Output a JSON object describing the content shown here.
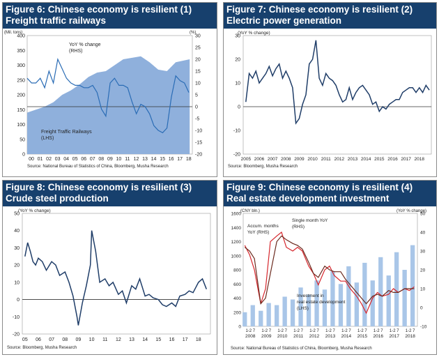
{
  "chart_data": [
    {
      "type": "area",
      "figure": "Figure 6: Chinese economy is resilient (1)",
      "subtitle": "Freight traffic railways",
      "y_left_unit": "(Mil. tons)",
      "y_right_unit": "(%)",
      "ylim_left": [
        0,
        400
      ],
      "ylim_right": [
        -20,
        30
      ],
      "yticks_left": [
        "0",
        "50",
        "100",
        "150",
        "200",
        "250",
        "300",
        "350",
        "400"
      ],
      "yticks_right": [
        "-20",
        "-15",
        "-10",
        "-5",
        "0",
        "5",
        "10",
        "15",
        "20",
        "25",
        "30"
      ],
      "xticks": [
        "00",
        "01",
        "02",
        "03",
        "04",
        "05",
        "06",
        "07",
        "08",
        "09",
        "10",
        "11",
        "12",
        "13",
        "14",
        "15",
        "16",
        "17",
        "18"
      ],
      "annotations": [
        "YoY % change\n(RHS)",
        "Freight Traffic Railways\n(LHS)"
      ],
      "source": "Source: National Bureau of Statistics of China, Bloomberg, Musha Research",
      "series": [
        {
          "name": "Freight Traffic Railways (LHS)",
          "x": [
            2000,
            2001,
            2002,
            2003,
            2004,
            2005,
            2006,
            2007,
            2008,
            2009,
            2010,
            2011,
            2012,
            2013,
            2014,
            2015,
            2016,
            2017,
            2018.6
          ],
          "values": [
            140,
            150,
            160,
            175,
            200,
            215,
            235,
            260,
            275,
            280,
            300,
            320,
            325,
            330,
            310,
            285,
            280,
            310,
            320
          ]
        },
        {
          "name": "YoY % change (RHS)",
          "x": [
            2000,
            2000.5,
            2001,
            2001.5,
            2002,
            2002.5,
            2003,
            2003.5,
            2004,
            2004.5,
            2005,
            2005.5,
            2006,
            2006.5,
            2007,
            2007.5,
            2008,
            2008.5,
            2009,
            2009.5,
            2010,
            2010.5,
            2011,
            2011.5,
            2012,
            2012.5,
            2013,
            2013.5,
            2014,
            2014.5,
            2015,
            2015.5,
            2016,
            2016.5,
            2017,
            2017.5,
            2018,
            2018.5
          ],
          "values": [
            12,
            10,
            10,
            12,
            8,
            15,
            10,
            20,
            16,
            12,
            10,
            9,
            9,
            8,
            8,
            9,
            6,
            -1,
            -4,
            10,
            12,
            9,
            9,
            8,
            2,
            -3,
            1,
            0,
            -3,
            -8,
            -10,
            -11,
            -9,
            4,
            13,
            11,
            10,
            6
          ]
        }
      ]
    },
    {
      "type": "line",
      "figure": "Figure 7: Chinese economy is resilient (2)",
      "subtitle": "Electric power generation",
      "ylabel": "(YoY % change)",
      "ylim": [
        -20,
        30
      ],
      "yticks": [
        "-20",
        "-10",
        "0",
        "10",
        "20",
        "30"
      ],
      "xticks": [
        "2005",
        "2006",
        "2007",
        "2008",
        "2009",
        "2010",
        "2011",
        "2012",
        "2013",
        "2014",
        "2015",
        "2016",
        "2017",
        "2018"
      ],
      "source": "Source: Bloomberg, Musha Research",
      "series": [
        {
          "x": [
            2005,
            2005.25,
            2005.5,
            2005.75,
            2006,
            2006.25,
            2006.5,
            2006.75,
            2007,
            2007.25,
            2007.5,
            2007.75,
            2008,
            2008.25,
            2008.5,
            2008.75,
            2009,
            2009.25,
            2009.5,
            2009.75,
            2010,
            2010.25,
            2010.5,
            2010.75,
            2011,
            2011.25,
            2011.5,
            2011.75,
            2012,
            2012.25,
            2012.5,
            2012.75,
            2013,
            2013.25,
            2013.5,
            2013.75,
            2014,
            2014.25,
            2014.5,
            2014.75,
            2015,
            2015.25,
            2015.5,
            2015.75,
            2016,
            2016.25,
            2016.5,
            2016.75,
            2017,
            2017.25,
            2017.5,
            2017.75,
            2018,
            2018.25,
            2018.5,
            2018.75
          ],
          "values": [
            2,
            14,
            12,
            15,
            10,
            12,
            14,
            17,
            13,
            16,
            18,
            12,
            15,
            12,
            8,
            -7,
            -5,
            1,
            5,
            18,
            20,
            28,
            12,
            9,
            14,
            12,
            11,
            9,
            5,
            2,
            3,
            8,
            3,
            6,
            8,
            9,
            7,
            5,
            1,
            2,
            -2,
            0,
            -1,
            1,
            2,
            3,
            3,
            6,
            7,
            8,
            8,
            6,
            8,
            6,
            9,
            7
          ]
        }
      ]
    },
    {
      "type": "line",
      "figure": "Figure 8: Chinese economy is resilient (3)",
      "subtitle": "Crude steel production",
      "ylabel": "(YoY % change)",
      "ylim": [
        -20,
        50
      ],
      "yticks": [
        "-20",
        "-10",
        "0",
        "10",
        "20",
        "30",
        "40",
        "50"
      ],
      "xticks": [
        "05",
        "06",
        "07",
        "08",
        "09",
        "10",
        "11",
        "12",
        "13",
        "14",
        "15",
        "16",
        "17",
        "18"
      ],
      "source": "Source: Bloomberg, Musha Research",
      "series": [
        {
          "x": [
            2005,
            2005.2,
            2005.4,
            2005.6,
            2005.8,
            2006,
            2006.3,
            2006.6,
            2007,
            2007.3,
            2007.6,
            2008,
            2008.3,
            2008.6,
            2008.9,
            2009,
            2009.3,
            2009.6,
            2009.9,
            2010,
            2010.3,
            2010.6,
            2011,
            2011.3,
            2011.6,
            2012,
            2012.3,
            2012.6,
            2013,
            2013.3,
            2013.6,
            2014,
            2014.3,
            2014.6,
            2015,
            2015.3,
            2015.6,
            2016,
            2016.3,
            2016.6,
            2017,
            2017.3,
            2017.6,
            2018,
            2018.3,
            2018.6
          ],
          "values": [
            25,
            33,
            28,
            22,
            20,
            24,
            22,
            17,
            22,
            20,
            14,
            16,
            10,
            2,
            -10,
            -15,
            -2,
            8,
            20,
            40,
            28,
            10,
            12,
            8,
            10,
            3,
            5,
            -2,
            8,
            6,
            12,
            2,
            3,
            1,
            0,
            -3,
            -4,
            -2,
            -4,
            2,
            3,
            5,
            4,
            10,
            12,
            6
          ]
        }
      ]
    },
    {
      "type": "bar+line",
      "figure": "Figure 9: Chinese economy is resilient (4)",
      "subtitle": "Real estate development investment",
      "y_left_unit": "(CNY bln.)",
      "y_right_unit": "(YoY % change)",
      "ylim_left": [
        0,
        1600
      ],
      "ylim_right": [
        -10,
        50
      ],
      "yticks_left": [
        "0",
        "200",
        "400",
        "600",
        "800",
        "1000",
        "1200",
        "1400",
        "1600"
      ],
      "yticks_right": [
        "-10",
        "0",
        "10",
        "20",
        "30",
        "40",
        "50"
      ],
      "xticks_months": "1-2 7",
      "xticks_years": [
        "2008",
        "2009",
        "2010",
        "2011",
        "2012",
        "2013",
        "2014",
        "2015",
        "2016",
        "2017",
        "2018"
      ],
      "annotations": [
        "Accum. months\nYoY (RHS)",
        "Single month YoY\n(RHS)",
        "Investment in\nreal estate development\n(LHS)"
      ],
      "source": "Source: National Bureau of Statistics of China, Bloomberg, Musha Research",
      "series": [
        {
          "name": "Investment in real estate development (LHS)",
          "kind": "bar",
          "x": [
            2008,
            2008.5,
            2009,
            2009.5,
            2010,
            2010.5,
            2011,
            2011.5,
            2012,
            2012.5,
            2013,
            2013.5,
            2014,
            2014.5,
            2015,
            2015.5,
            2016,
            2016.5,
            2017,
            2017.5,
            2018,
            2018.5
          ],
          "values": [
            200,
            300,
            220,
            330,
            300,
            420,
            380,
            550,
            450,
            650,
            520,
            780,
            600,
            850,
            620,
            900,
            650,
            980,
            720,
            1050,
            800,
            1150
          ]
        },
        {
          "name": "Single month YoY (RHS)",
          "kind": "line",
          "x": [
            2008,
            2008.3,
            2008.6,
            2009,
            2009.3,
            2009.6,
            2010,
            2010.3,
            2010.6,
            2011,
            2011.3,
            2011.6,
            2012,
            2012.3,
            2012.6,
            2013,
            2013.3,
            2013.6,
            2014,
            2014.3,
            2014.6,
            2015,
            2015.3,
            2015.6,
            2016,
            2016.3,
            2016.6,
            2017,
            2017.3,
            2017.6,
            2018,
            2018.3,
            2018.6
          ],
          "values": [
            33,
            28,
            20,
            2,
            10,
            35,
            38,
            40,
            32,
            30,
            32,
            30,
            22,
            18,
            12,
            20,
            22,
            17,
            14,
            14,
            10,
            6,
            2,
            -3,
            5,
            8,
            6,
            7,
            10,
            8,
            10,
            9,
            11
          ]
        },
        {
          "name": "Accum. months YoY (RHS)",
          "kind": "line",
          "x": [
            2008,
            2008.3,
            2008.6,
            2009,
            2009.3,
            2009.6,
            2010,
            2010.3,
            2010.6,
            2011,
            2011.3,
            2011.6,
            2012,
            2012.3,
            2012.6,
            2013,
            2013.3,
            2013.6,
            2014,
            2014.3,
            2014.6,
            2015,
            2015.3,
            2015.6,
            2016,
            2016.3,
            2016.6,
            2017,
            2017.3,
            2017.6,
            2018,
            2018.3,
            2018.6
          ],
          "values": [
            32,
            30,
            26,
            2,
            5,
            18,
            35,
            38,
            36,
            34,
            33,
            31,
            24,
            18,
            16,
            22,
            20,
            19,
            19,
            15,
            12,
            8,
            5,
            2,
            6,
            7,
            6,
            9,
            8,
            8,
            10,
            10,
            10
          ]
        }
      ]
    }
  ]
}
